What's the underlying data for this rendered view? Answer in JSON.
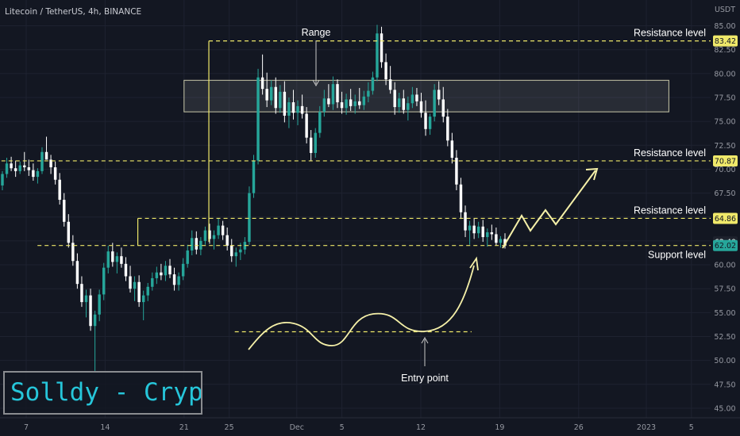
{
  "header": {
    "title": "Litecoin / TetherUS, 4h, BINANCE"
  },
  "watermark": {
    "text": "Solldy - Crypto for U"
  },
  "chart_data": {
    "type": "candlestick",
    "price_axis": {
      "unit": "USDT",
      "ticks": [
        "85.00",
        "82.50",
        "80.00",
        "77.50",
        "75.00",
        "72.50",
        "70.00",
        "67.50",
        "65.00",
        "62.50",
        "60.00",
        "57.50",
        "55.00",
        "52.50",
        "50.00",
        "47.50",
        "45.00"
      ],
      "range": [
        44.0,
        87.7
      ]
    },
    "time_axis": {
      "ticks": [
        {
          "label": "7",
          "day": 7
        },
        {
          "label": "14",
          "day": 14
        },
        {
          "label": "21",
          "day": 21
        },
        {
          "label": "25",
          "day": 25
        },
        {
          "label": "Dec",
          "day": 31
        },
        {
          "label": "5",
          "day": 35
        },
        {
          "label": "12",
          "day": 42
        },
        {
          "label": "19",
          "day": 49
        },
        {
          "label": "26",
          "day": 56
        },
        {
          "label": "2023",
          "day": 62
        },
        {
          "label": "5",
          "day": 66
        }
      ]
    },
    "levels": [
      {
        "label": "Resistance level",
        "price": 83.42,
        "tag": "83.42",
        "from_day": 23.2
      },
      {
        "label": "Resistance level",
        "price": 70.87,
        "tag": "70.87",
        "from_day": 1.0
      },
      {
        "label": "Resistance level",
        "price": 64.86,
        "tag": "64.86",
        "from_day": 16.9
      },
      {
        "label": "Support level",
        "price": 62.02,
        "tag": "62.02",
        "from_day": 8.0
      }
    ],
    "price_tags": [
      {
        "price": 83.42,
        "text": "83.42",
        "style": "level"
      },
      {
        "price": 70.87,
        "text": "70.87",
        "style": "level"
      },
      {
        "price": 64.86,
        "text": "64.86",
        "style": "level"
      },
      {
        "price": 62.4,
        "text": "62.40",
        "style": "dark"
      },
      {
        "price": 62.02,
        "text": "62.02",
        "style": "current"
      }
    ],
    "range_box": {
      "label": "Range",
      "from_day": 21.0,
      "to_day": 64.0,
      "low": 76.0,
      "high": 79.3
    },
    "entry": {
      "label": "Entry point",
      "price": 53.0,
      "from_day": 25.5,
      "to_day": 46.5
    },
    "candles_ohlc_approx": [
      [
        68.3,
        69.8,
        67.8,
        69.5
      ],
      [
        69.5,
        71.2,
        69.1,
        70.6
      ],
      [
        70.6,
        71.3,
        69.8,
        70.1
      ],
      [
        70.1,
        70.9,
        69.2,
        69.8
      ],
      [
        69.8,
        70.8,
        69.5,
        70.4
      ],
      [
        70.4,
        71.8,
        69.8,
        70.2
      ],
      [
        70.2,
        71.0,
        69.3,
        69.9
      ],
      [
        69.9,
        70.6,
        68.8,
        69.2
      ],
      [
        69.2,
        70.1,
        68.5,
        69.8
      ],
      [
        69.8,
        72.3,
        69.5,
        71.8
      ],
      [
        71.8,
        73.4,
        71.2,
        71.0
      ],
      [
        71.0,
        71.5,
        69.5,
        70.2
      ],
      [
        70.2,
        70.8,
        68.4,
        68.9
      ],
      [
        68.9,
        69.6,
        66.3,
        66.8
      ],
      [
        66.8,
        67.5,
        64.0,
        64.5
      ],
      [
        64.5,
        65.3,
        61.8,
        62.3
      ],
      [
        62.3,
        63.1,
        59.9,
        60.4
      ],
      [
        60.4,
        61.2,
        57.5,
        58.0
      ],
      [
        58.0,
        58.8,
        55.6,
        56.1
      ],
      [
        56.1,
        57.4,
        54.5,
        56.8
      ],
      [
        56.8,
        57.5,
        53.1,
        53.6
      ],
      [
        53.6,
        55.2,
        48.9,
        54.8
      ],
      [
        54.8,
        57.4,
        54.1,
        56.9
      ],
      [
        56.9,
        60.2,
        56.3,
        59.7
      ],
      [
        59.7,
        62.0,
        59.1,
        61.4
      ],
      [
        61.4,
        62.3,
        59.8,
        60.3
      ],
      [
        60.3,
        61.3,
        59.1,
        60.9
      ],
      [
        60.9,
        61.8,
        59.7,
        60.1
      ],
      [
        60.1,
        60.8,
        58.3,
        58.8
      ],
      [
        58.8,
        59.9,
        57.1,
        57.5
      ],
      [
        57.5,
        58.8,
        56.2,
        58.2
      ],
      [
        58.2,
        58.9,
        55.6,
        56.1
      ],
      [
        56.1,
        57.3,
        54.2,
        56.8
      ],
      [
        56.8,
        58.1,
        56.2,
        57.7
      ],
      [
        57.7,
        59.2,
        57.3,
        58.6
      ],
      [
        58.6,
        59.8,
        58.0,
        59.2
      ],
      [
        59.2,
        60.1,
        58.4,
        58.9
      ],
      [
        58.9,
        60.4,
        58.3,
        59.9
      ],
      [
        59.9,
        60.6,
        58.6,
        59.0
      ],
      [
        59.0,
        59.7,
        57.3,
        57.9
      ],
      [
        57.9,
        59.2,
        57.3,
        58.8
      ],
      [
        58.8,
        60.7,
        58.4,
        60.1
      ],
      [
        60.1,
        62.1,
        59.7,
        61.5
      ],
      [
        61.5,
        63.6,
        61.0,
        62.8
      ],
      [
        62.8,
        63.5,
        61.1,
        61.6
      ],
      [
        61.6,
        62.9,
        61.0,
        62.5
      ],
      [
        62.5,
        64.0,
        62.1,
        63.6
      ],
      [
        63.6,
        64.3,
        62.2,
        62.7
      ],
      [
        62.7,
        63.6,
        61.6,
        63.1
      ],
      [
        63.1,
        64.9,
        62.7,
        64.1
      ],
      [
        64.1,
        64.6,
        62.6,
        63.1
      ],
      [
        63.1,
        63.9,
        61.5,
        62.0
      ],
      [
        62.0,
        62.7,
        60.3,
        60.9
      ],
      [
        60.9,
        61.8,
        59.8,
        61.3
      ],
      [
        61.3,
        62.3,
        60.5,
        61.6
      ],
      [
        61.6,
        62.9,
        61.1,
        62.4
      ],
      [
        62.4,
        68.2,
        62.1,
        67.5
      ],
      [
        67.5,
        71.5,
        67.0,
        70.9
      ],
      [
        70.9,
        80.5,
        70.5,
        79.6
      ],
      [
        79.6,
        82.0,
        77.8,
        78.4
      ],
      [
        78.4,
        80.1,
        76.5,
        77.2
      ],
      [
        77.2,
        79.3,
        76.7,
        78.6
      ],
      [
        78.6,
        79.6,
        75.8,
        76.4
      ],
      [
        76.4,
        78.8,
        75.9,
        78.1
      ],
      [
        78.1,
        79.2,
        74.9,
        75.6
      ],
      [
        75.6,
        77.5,
        74.3,
        77.0
      ],
      [
        77.0,
        78.3,
        75.2,
        75.9
      ],
      [
        75.9,
        77.2,
        74.6,
        76.6
      ],
      [
        76.6,
        77.8,
        75.3,
        75.8
      ],
      [
        75.8,
        76.5,
        72.7,
        73.3
      ],
      [
        73.3,
        74.1,
        70.9,
        71.7
      ],
      [
        71.7,
        74.3,
        71.2,
        73.8
      ],
      [
        73.8,
        76.6,
        73.3,
        76.0
      ],
      [
        76.0,
        78.3,
        75.5,
        77.4
      ],
      [
        77.4,
        78.9,
        76.5,
        76.8
      ],
      [
        76.8,
        79.7,
        76.2,
        78.9
      ],
      [
        78.9,
        79.4,
        76.4,
        77.0
      ],
      [
        77.0,
        78.1,
        75.8,
        76.4
      ],
      [
        76.4,
        77.9,
        75.7,
        77.3
      ],
      [
        77.3,
        78.4,
        76.1,
        76.6
      ],
      [
        76.6,
        77.8,
        75.8,
        77.1
      ],
      [
        77.1,
        78.5,
        76.3,
        76.7
      ],
      [
        76.7,
        78.2,
        76.2,
        77.6
      ],
      [
        77.6,
        79.1,
        77.0,
        78.2
      ],
      [
        78.2,
        80.2,
        77.8,
        79.6
      ],
      [
        79.6,
        85.1,
        79.2,
        84.2
      ],
      [
        84.2,
        84.9,
        80.6,
        81.2
      ],
      [
        81.2,
        82.1,
        78.8,
        79.4
      ],
      [
        79.4,
        80.8,
        77.9,
        78.3
      ],
      [
        78.3,
        79.1,
        75.7,
        76.5
      ],
      [
        76.5,
        78.0,
        75.9,
        77.4
      ],
      [
        77.4,
        78.3,
        75.8,
        76.2
      ],
      [
        76.2,
        77.6,
        75.1,
        76.9
      ],
      [
        76.9,
        78.6,
        76.4,
        77.8
      ],
      [
        77.8,
        78.5,
        76.6,
        77.1
      ],
      [
        77.1,
        78.0,
        75.4,
        75.9
      ],
      [
        75.9,
        77.2,
        73.5,
        74.2
      ],
      [
        74.2,
        75.8,
        73.6,
        75.5
      ],
      [
        75.5,
        78.9,
        75.0,
        78.3
      ],
      [
        78.3,
        79.2,
        76.7,
        77.3
      ],
      [
        77.3,
        78.6,
        74.9,
        75.5
      ],
      [
        75.5,
        76.3,
        72.4,
        73.0
      ],
      [
        73.0,
        73.8,
        70.6,
        71.2
      ],
      [
        71.2,
        72.0,
        67.8,
        68.4
      ],
      [
        68.4,
        69.1,
        64.8,
        65.5
      ],
      [
        65.5,
        66.2,
        62.9,
        63.6
      ],
      [
        63.6,
        64.6,
        62.1,
        64.1
      ],
      [
        64.1,
        64.9,
        62.7,
        63.3
      ],
      [
        63.3,
        64.5,
        62.8,
        64.0
      ],
      [
        64.0,
        64.7,
        62.4,
        62.9
      ],
      [
        62.9,
        63.8,
        61.9,
        63.4
      ],
      [
        63.4,
        64.2,
        62.6,
        63.2
      ],
      [
        63.2,
        63.9,
        62.0,
        62.3
      ],
      [
        62.3,
        63.0,
        61.8,
        62.7
      ],
      [
        62.7,
        63.3,
        61.7,
        62.0
      ]
    ]
  }
}
